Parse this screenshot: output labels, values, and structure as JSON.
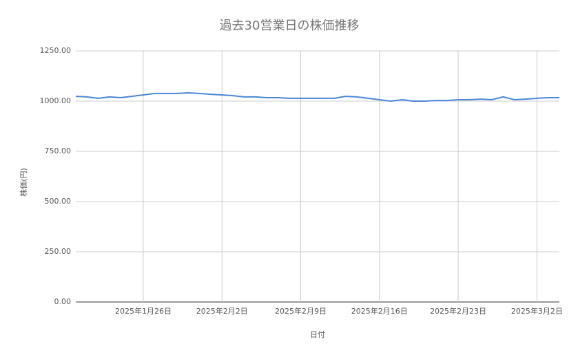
{
  "chart_data": {
    "type": "line",
    "title": "過去30営業日の株価推移",
    "x_label": "日付",
    "y_label": "株価(円)",
    "x": [
      "2025-01-20",
      "2025-01-21",
      "2025-01-22",
      "2025-01-23",
      "2025-01-24",
      "2025-01-25",
      "2025-01-26",
      "2025-01-27",
      "2025-01-28",
      "2025-01-29",
      "2025-01-30",
      "2025-01-31",
      "2025-02-01",
      "2025-02-02",
      "2025-02-03",
      "2025-02-04",
      "2025-02-05",
      "2025-02-06",
      "2025-02-07",
      "2025-02-08",
      "2025-02-09",
      "2025-02-10",
      "2025-02-11",
      "2025-02-12",
      "2025-02-13",
      "2025-02-14",
      "2025-02-15",
      "2025-02-16",
      "2025-02-17",
      "2025-02-18",
      "2025-02-19",
      "2025-02-20",
      "2025-02-21",
      "2025-02-22",
      "2025-02-23",
      "2025-02-24",
      "2025-02-25",
      "2025-02-26",
      "2025-02-27",
      "2025-02-28",
      "2025-03-01",
      "2025-03-02",
      "2025-03-03",
      "2025-03-04"
    ],
    "series": [
      {
        "name": "株価",
        "color": "#4a86d8",
        "values": [
          1024,
          1021,
          1014,
          1021,
          1017,
          1024,
          1031,
          1038,
          1038,
          1038,
          1041,
          1038,
          1034,
          1031,
          1027,
          1021,
          1021,
          1017,
          1017,
          1014,
          1014,
          1014,
          1014,
          1014,
          1024,
          1021,
          1014,
          1007,
          1000,
          1007,
          1000,
          1000,
          1003,
          1003,
          1007,
          1007,
          1010,
          1007,
          1021,
          1007,
          1010,
          1014,
          1017,
          1017
        ]
      }
    ],
    "xlim": [
      "2025-01-20",
      "2025-03-04"
    ],
    "xticks": [
      {
        "value": "2025-01-26",
        "label": "2025年1月26日"
      },
      {
        "value": "2025-02-02",
        "label": "2025年2月2日"
      },
      {
        "value": "2025-02-09",
        "label": "2025年2月9日"
      },
      {
        "value": "2025-02-16",
        "label": "2025年2月16日"
      },
      {
        "value": "2025-02-23",
        "label": "2025年2月23日"
      },
      {
        "value": "2025-03-02",
        "label": "2025年3月2日"
      }
    ],
    "ylim": [
      0,
      1250
    ],
    "yticks": [
      {
        "value": 0,
        "label": "0.00"
      },
      {
        "value": 250,
        "label": "250.00"
      },
      {
        "value": 500,
        "label": "500.00"
      },
      {
        "value": 750,
        "label": "750.00"
      },
      {
        "value": 1000,
        "label": "1000.00"
      },
      {
        "value": 1250,
        "label": "1250.00"
      }
    ],
    "grid": true
  }
}
